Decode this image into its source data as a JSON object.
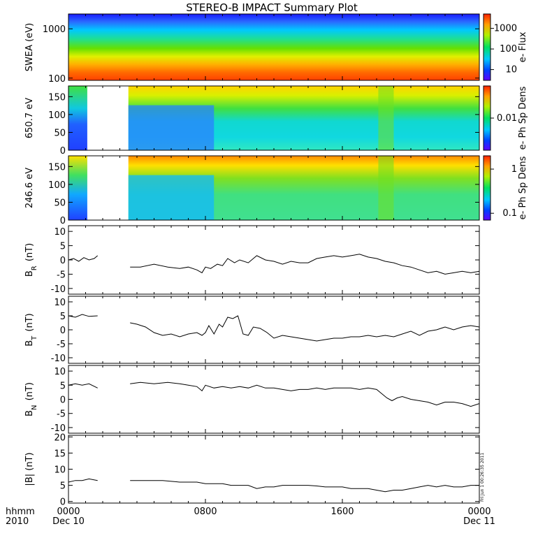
{
  "title": "STEREO-B IMPACT Summary Plot",
  "x_axis": {
    "caption_top": "hhmm",
    "caption_bottom": "2010",
    "ticks": [
      {
        "hour": 0,
        "label": "0000",
        "date": "Dec 10"
      },
      {
        "hour": 8,
        "label": "0800",
        "date": ""
      },
      {
        "hour": 16,
        "label": "1600",
        "date": ""
      },
      {
        "hour": 24,
        "label": "0000",
        "date": "Dec 11"
      }
    ]
  },
  "side_stamp": "Fri Jun 1 00:26:35 2011",
  "colors": {
    "line": "#000000",
    "gap": "#ffffff"
  },
  "chart_data": [
    {
      "type": "heatmap",
      "ylabel": "SWEA (eV)",
      "yscale": "log",
      "ylim": [
        90,
        2000
      ],
      "yticks": [
        100,
        1000
      ],
      "colorbar": {
        "label": "e- Flux",
        "scale": "log",
        "ticks": [
          10,
          100,
          1000
        ]
      },
      "x_hours": [
        0,
        24
      ],
      "data_gaps": []
    },
    {
      "type": "heatmap",
      "ylabel": "650.7 eV",
      "ylim": [
        0,
        180
      ],
      "yticks": [
        0,
        50,
        100,
        150
      ],
      "colorbar": {
        "label": "e- Ph Sp Dens",
        "scale": "log",
        "ticks": [
          0.01
        ]
      },
      "data_gaps": [
        [
          1.1,
          3.5
        ]
      ]
    },
    {
      "type": "heatmap",
      "ylabel": "246.6 eV",
      "ylim": [
        0,
        180
      ],
      "yticks": [
        0,
        50,
        100,
        150
      ],
      "colorbar": {
        "label": "e- Ph Sp Dens",
        "scale": "log",
        "ticks": [
          0.1,
          1.0
        ]
      },
      "data_gaps": [
        [
          1.1,
          3.5
        ]
      ]
    },
    {
      "type": "line",
      "ylabel": "B_R (nT)",
      "ylim": [
        -12,
        12
      ],
      "yticks": [
        -10,
        -5,
        0,
        5,
        10
      ],
      "segments": [
        {
          "x": [
            0,
            0.3,
            0.6,
            0.9,
            1.2,
            1.5,
            1.7
          ],
          "y": [
            0,
            0.5,
            -0.5,
            0.8,
            0,
            0.5,
            1.5
          ]
        },
        {
          "x": [
            3.6,
            4.2,
            5.0,
            5.8,
            6.5,
            7.0,
            7.5,
            7.8,
            8.0,
            8.3,
            8.7,
            9.0,
            9.3,
            9.7,
            10.0,
            10.5,
            11.0,
            11.5,
            12.0,
            12.5,
            13.0,
            13.5,
            14.0,
            14.5,
            15.0,
            15.5,
            16.0,
            16.5,
            17.0,
            17.5,
            18.0,
            18.5,
            19.0,
            19.5,
            20.0,
            20.5,
            21.0,
            21.5,
            22.0,
            22.5,
            23.0,
            23.5,
            24.0
          ],
          "y": [
            -2.5,
            -2.5,
            -1.5,
            -2.5,
            -3.0,
            -2.5,
            -3.5,
            -4.5,
            -2.5,
            -3.0,
            -1.5,
            -2.0,
            0.5,
            -1.0,
            0.0,
            -1.0,
            1.5,
            0.0,
            -0.5,
            -1.5,
            -0.5,
            -1.0,
            -1.0,
            0.5,
            1.0,
            1.5,
            1.0,
            1.5,
            2.0,
            1.0,
            0.5,
            -0.5,
            -1.0,
            -2.0,
            -2.5,
            -3.5,
            -4.5,
            -4.0,
            -5.0,
            -4.5,
            -4.0,
            -4.5,
            -4.0
          ]
        }
      ]
    },
    {
      "type": "line",
      "ylabel": "B_T (nT)",
      "ylim": [
        -12,
        12
      ],
      "yticks": [
        -10,
        -5,
        0,
        5,
        10
      ],
      "segments": [
        {
          "x": [
            0,
            0.4,
            0.8,
            1.2,
            1.7
          ],
          "y": [
            5.0,
            4.5,
            5.5,
            4.8,
            5.0
          ]
        },
        {
          "x": [
            3.6,
            4.0,
            4.5,
            5.0,
            5.5,
            6.0,
            6.5,
            7.0,
            7.5,
            7.8,
            8.0,
            8.2,
            8.5,
            8.8,
            9.0,
            9.3,
            9.6,
            9.9,
            10.2,
            10.5,
            10.8,
            11.2,
            11.6,
            12.0,
            12.5,
            13.0,
            13.5,
            14.0,
            14.5,
            15.0,
            15.5,
            16.0,
            16.5,
            17.0,
            17.5,
            18.0,
            18.5,
            19.0,
            19.5,
            20.0,
            20.5,
            21.0,
            21.5,
            22.0,
            22.5,
            23.0,
            23.5,
            24.0
          ],
          "y": [
            2.5,
            2.0,
            1.0,
            -1.0,
            -2.0,
            -1.5,
            -2.5,
            -1.5,
            -1.0,
            -2.0,
            -1.0,
            1.5,
            -1.5,
            2.0,
            1.0,
            4.5,
            4.0,
            5.0,
            -1.5,
            -2.0,
            1.0,
            0.5,
            -1.0,
            -3.0,
            -2.0,
            -2.5,
            -3.0,
            -3.5,
            -4.0,
            -3.5,
            -3.0,
            -3.0,
            -2.5,
            -2.5,
            -2.0,
            -2.5,
            -2.0,
            -2.5,
            -1.5,
            -0.5,
            -2.0,
            -0.5,
            0.0,
            1.0,
            0.0,
            1.0,
            1.5,
            1.0
          ]
        }
      ]
    },
    {
      "type": "line",
      "ylabel": "B_N (nT)",
      "ylim": [
        -12,
        12
      ],
      "yticks": [
        -10,
        -5,
        0,
        5,
        10
      ],
      "segments": [
        {
          "x": [
            0,
            0.4,
            0.8,
            1.2,
            1.7
          ],
          "y": [
            5.0,
            5.5,
            5.0,
            5.5,
            4.0
          ]
        },
        {
          "x": [
            3.6,
            4.2,
            5.0,
            5.8,
            6.5,
            7.0,
            7.5,
            7.8,
            8.0,
            8.5,
            9.0,
            9.5,
            10.0,
            10.5,
            11.0,
            11.5,
            12.0,
            12.5,
            13.0,
            13.5,
            14.0,
            14.5,
            15.0,
            15.5,
            16.0,
            16.5,
            17.0,
            17.5,
            18.0,
            18.3,
            18.6,
            18.9,
            19.2,
            19.5,
            20.0,
            20.5,
            21.0,
            21.5,
            22.0,
            22.5,
            23.0,
            23.5,
            24.0
          ],
          "y": [
            5.5,
            6.0,
            5.5,
            6.0,
            5.5,
            5.0,
            4.5,
            3.0,
            5.0,
            4.0,
            4.5,
            4.0,
            4.5,
            4.0,
            5.0,
            4.0,
            4.0,
            3.5,
            3.0,
            3.5,
            3.5,
            4.0,
            3.5,
            4.0,
            4.0,
            4.0,
            3.5,
            4.0,
            3.5,
            2.0,
            0.5,
            -0.5,
            0.5,
            1.0,
            0.0,
            -0.5,
            -1.0,
            -2.0,
            -1.0,
            -1.0,
            -1.5,
            -2.5,
            -1.5
          ]
        }
      ]
    },
    {
      "type": "line",
      "ylabel": "|B| (nT)",
      "ylim": [
        -0.5,
        20.5
      ],
      "yticks": [
        0,
        5,
        10,
        15,
        20
      ],
      "segments": [
        {
          "x": [
            0,
            0.4,
            0.8,
            1.2,
            1.7
          ],
          "y": [
            6.0,
            6.5,
            6.5,
            7.0,
            6.5
          ]
        },
        {
          "x": [
            3.6,
            4.5,
            5.5,
            6.5,
            7.5,
            8.0,
            8.5,
            9.0,
            9.5,
            10.0,
            10.5,
            11.0,
            11.5,
            12.0,
            12.5,
            13.0,
            13.5,
            14.0,
            14.5,
            15.0,
            15.5,
            16.0,
            16.5,
            17.0,
            17.5,
            18.0,
            18.5,
            19.0,
            19.5,
            20.0,
            20.5,
            21.0,
            21.5,
            22.0,
            22.5,
            23.0,
            23.5,
            24.0
          ],
          "y": [
            6.5,
            6.5,
            6.5,
            6.0,
            6.0,
            5.5,
            5.5,
            5.5,
            5.0,
            5.0,
            5.0,
            4.0,
            4.5,
            4.5,
            5.0,
            5.0,
            5.0,
            5.0,
            4.8,
            4.5,
            4.5,
            4.5,
            4.0,
            4.0,
            4.0,
            3.5,
            3.0,
            3.5,
            3.5,
            4.0,
            4.5,
            5.0,
            4.5,
            5.0,
            4.5,
            4.5,
            5.0,
            5.0
          ]
        }
      ]
    }
  ]
}
